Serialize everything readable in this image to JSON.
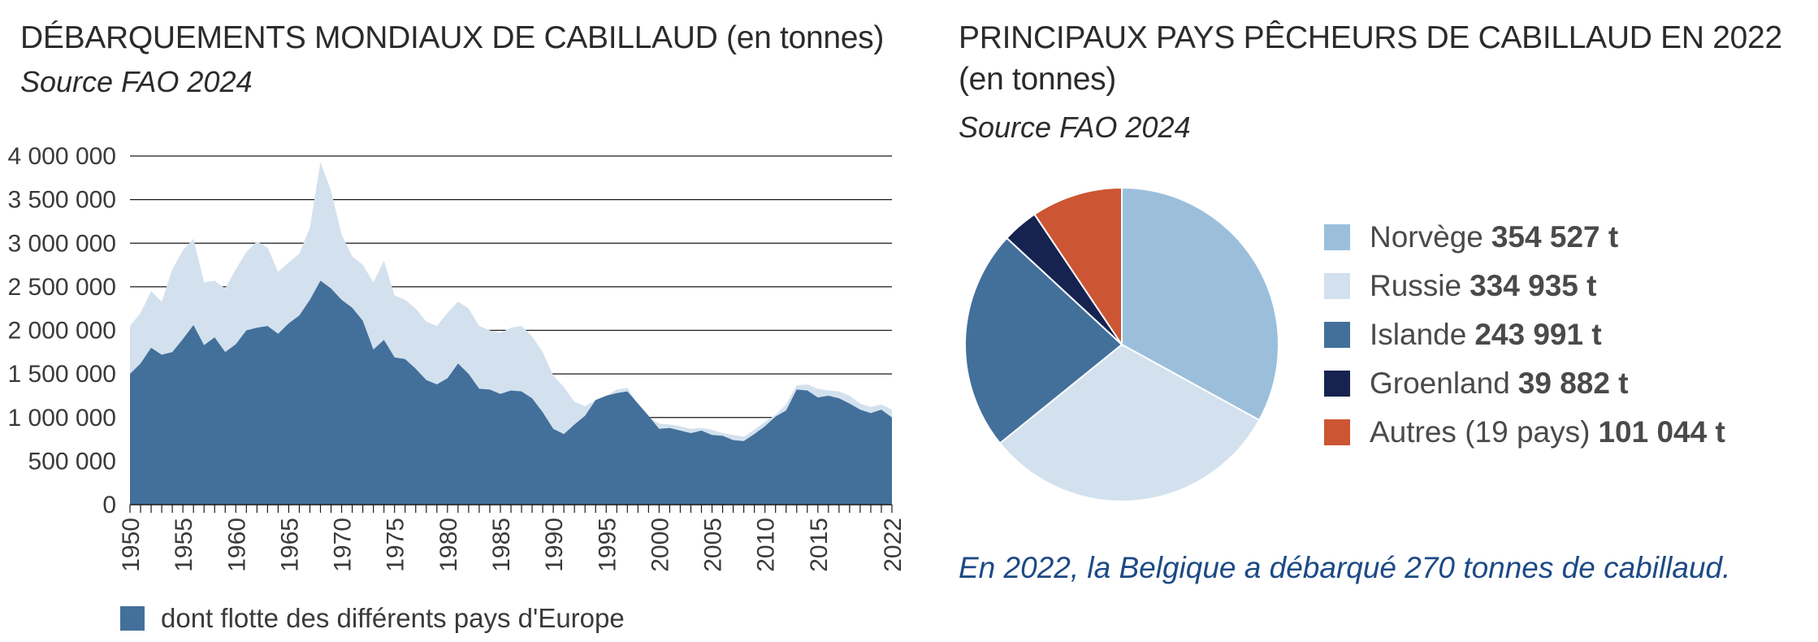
{
  "left_chart": {
    "title_main": "DÉBARQUEMENTS MONDIAUX DE CABILLAUD",
    "title_unit": "(en tonnes)",
    "source": "Source FAO 2024",
    "legend_label": "dont flotte des différents pays d'Europe"
  },
  "right_chart": {
    "title_main": "PRINCIPAUX PAYS PÊCHEURS DE CABILLAUD EN 2022",
    "title_unit": "(en tonnes)",
    "source": "Source FAO 2024",
    "note": "En 2022, la Belgique a débarqué 270 tonnes de cabillaud."
  },
  "chart_data": [
    {
      "type": "area",
      "ylim": [
        0,
        4000000
      ],
      "yticks": [
        "0",
        "500 000",
        "1 000 000",
        "1 500 000",
        "2 000 000",
        "2 500 000",
        "3 000 000",
        "3 500 000",
        "4 000 000"
      ],
      "xticks": [
        "1950",
        "1955",
        "1960",
        "1965",
        "1970",
        "1975",
        "1980",
        "1985",
        "1990",
        "1995",
        "2000",
        "2005",
        "2010",
        "2015",
        "2022"
      ],
      "grid": true,
      "legend_position": "bottom-left",
      "x": [
        1950,
        1951,
        1952,
        1953,
        1954,
        1955,
        1956,
        1957,
        1958,
        1959,
        1960,
        1961,
        1962,
        1963,
        1964,
        1965,
        1966,
        1967,
        1968,
        1969,
        1970,
        1971,
        1972,
        1973,
        1974,
        1975,
        1976,
        1977,
        1978,
        1979,
        1980,
        1981,
        1982,
        1983,
        1984,
        1985,
        1986,
        1987,
        1988,
        1989,
        1990,
        1991,
        1992,
        1993,
        1994,
        1995,
        1996,
        1997,
        1998,
        1999,
        2000,
        2001,
        2002,
        2003,
        2004,
        2005,
        2006,
        2007,
        2008,
        2009,
        2010,
        2011,
        2012,
        2013,
        2014,
        2015,
        2016,
        2017,
        2018,
        2019,
        2020,
        2021,
        2022
      ],
      "series": [
        {
          "name": "",
          "color": "#d3e1ee",
          "values": [
            2050000,
            2200000,
            2450000,
            2330000,
            2700000,
            2920000,
            3050000,
            2550000,
            2570000,
            2480000,
            2700000,
            2900000,
            3020000,
            2950000,
            2670000,
            2780000,
            2880000,
            3180000,
            3930000,
            3600000,
            3100000,
            2850000,
            2750000,
            2550000,
            2800000,
            2400000,
            2350000,
            2250000,
            2100000,
            2050000,
            2200000,
            2330000,
            2250000,
            2050000,
            2000000,
            1970000,
            2030000,
            2050000,
            1930000,
            1750000,
            1480000,
            1350000,
            1180000,
            1130000,
            1200000,
            1250000,
            1320000,
            1340000,
            1150000,
            1000000,
            930000,
            920000,
            900000,
            870000,
            880000,
            860000,
            820000,
            800000,
            780000,
            860000,
            950000,
            1030000,
            1150000,
            1370000,
            1380000,
            1330000,
            1310000,
            1300000,
            1250000,
            1160000,
            1120000,
            1150000,
            1090000
          ]
        },
        {
          "name": "dont flotte des différents pays d'Europe",
          "color": "#436f9b",
          "values": [
            1500000,
            1620000,
            1800000,
            1720000,
            1750000,
            1900000,
            2060000,
            1830000,
            1920000,
            1750000,
            1840000,
            2000000,
            2030000,
            2050000,
            1960000,
            2080000,
            2170000,
            2350000,
            2570000,
            2480000,
            2350000,
            2260000,
            2110000,
            1780000,
            1890000,
            1690000,
            1670000,
            1560000,
            1430000,
            1380000,
            1450000,
            1620000,
            1500000,
            1330000,
            1320000,
            1270000,
            1310000,
            1300000,
            1220000,
            1060000,
            870000,
            810000,
            920000,
            1020000,
            1200000,
            1250000,
            1280000,
            1300000,
            1160000,
            1020000,
            870000,
            880000,
            850000,
            820000,
            850000,
            800000,
            790000,
            740000,
            730000,
            810000,
            900000,
            1010000,
            1080000,
            1320000,
            1310000,
            1230000,
            1250000,
            1220000,
            1160000,
            1090000,
            1050000,
            1090000,
            1000000
          ]
        }
      ]
    },
    {
      "type": "pie",
      "legend_position": "right",
      "slices": [
        {
          "label": "Norvège",
          "value_text": "354 527 t",
          "value": 354527,
          "color": "#9bbfdb"
        },
        {
          "label": "Russie",
          "value_text": "334 935 t",
          "value": 334935,
          "color": "#d3e1ee"
        },
        {
          "label": "Islande",
          "value_text": "243 991 t",
          "value": 243991,
          "color": "#436f9b"
        },
        {
          "label": "Groenland",
          "value_text": "39 882 t",
          "value": 39882,
          "color": "#162350"
        },
        {
          "label": "Autres (19 pays)",
          "value_text": "101 044 t",
          "value": 101044,
          "color": "#cc5533"
        }
      ]
    }
  ]
}
